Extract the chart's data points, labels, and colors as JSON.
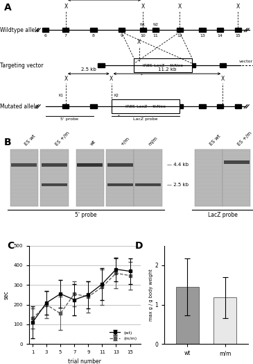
{
  "panel_C": {
    "trial_numbers": [
      1,
      3,
      5,
      7,
      9,
      11,
      13,
      15
    ],
    "wt_values": [
      110,
      210,
      255,
      225,
      250,
      305,
      380,
      370
    ],
    "wt_errors": [
      80,
      60,
      70,
      80,
      70,
      80,
      60,
      65
    ],
    "mm_values": [
      130,
      200,
      155,
      255,
      240,
      290,
      360,
      348
    ],
    "mm_errors": [
      50,
      70,
      85,
      65,
      80,
      90,
      75,
      70
    ],
    "ylabel": "sec",
    "xlabel": "trial number",
    "yticks": [
      0,
      100,
      200,
      300,
      400,
      500
    ],
    "ylim": [
      0,
      500
    ],
    "legend_wt": "(wt)",
    "legend_mm": "(m/m)"
  },
  "panel_D": {
    "categories": [
      "wt",
      "m/m"
    ],
    "values": [
      1.45,
      1.18
    ],
    "errors": [
      0.72,
      0.52
    ],
    "colors": [
      "#999999",
      "#e8e8e8"
    ],
    "ylabel": "max g / g body weight",
    "ylim": [
      0,
      2.5
    ],
    "yticks": [
      0,
      1,
      2
    ]
  },
  "bg_color": "#ffffff"
}
